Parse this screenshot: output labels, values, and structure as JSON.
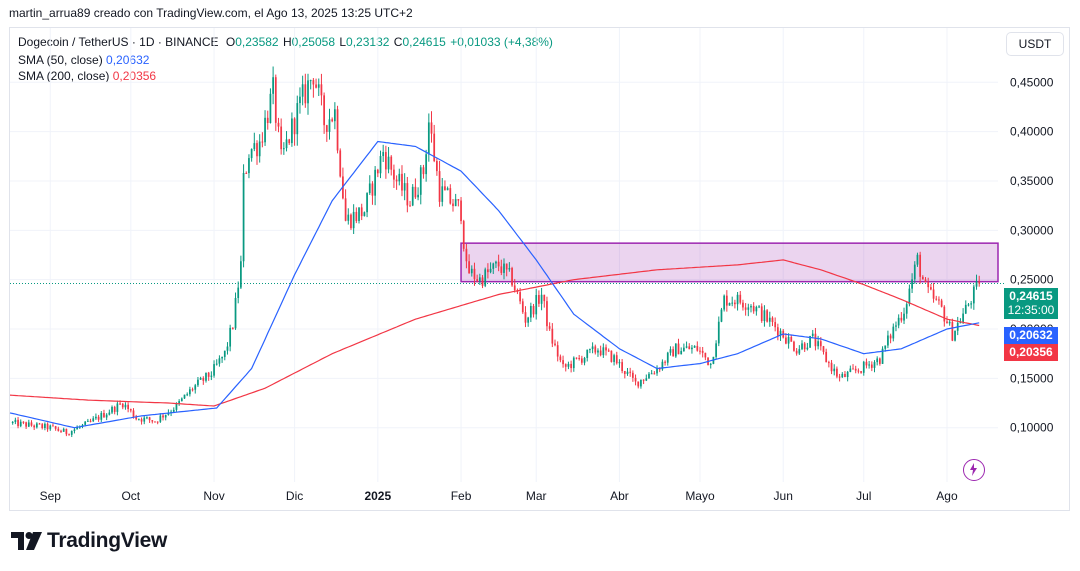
{
  "header": {
    "credit": "martin_arrua89 creado con TradingView.com, el Ago 13, 2025 13:25 UTC+2"
  },
  "legend": {
    "symbol": "Dogecoin / TetherUS · 1D · BINANCE",
    "open_label": "O",
    "open": "0,23582",
    "high_label": "H",
    "high": "0,25058",
    "low_label": "L",
    "low": "0,23132",
    "close_label": "C",
    "close": "0,24615",
    "change": "+0,01033 (+4,38%)",
    "sma50_label": "SMA (50, close)",
    "sma50_value": "0,20632",
    "sma200_label": "SMA (200, close)",
    "sma200_value": "0,20356"
  },
  "currency": "USDT",
  "price_tags": {
    "last_price": "0,24615",
    "countdown": "12:35:00",
    "sma50": "0,20632",
    "sma200": "0,20356"
  },
  "brand": {
    "name": "TradingView"
  },
  "colors": {
    "up": "#089981",
    "down": "#f23645",
    "sma50": "#2962ff",
    "sma200": "#f23645",
    "zone": "#9c27b0"
  },
  "chart_data": {
    "type": "candlestick",
    "y_tick_labels": [
      "0,10000",
      "0,15000",
      "0,20000",
      "0,25000",
      "0,30000",
      "0,35000",
      "0,40000",
      "0,45000"
    ],
    "y_ticks": [
      0.1,
      0.15,
      0.2,
      0.25,
      0.3,
      0.35,
      0.4,
      0.45
    ],
    "ylim": [
      0.045,
      0.505
    ],
    "x_tick_labels": [
      "Sep",
      "Oct",
      "Nov",
      "Dic",
      "2025",
      "Feb",
      "Mar",
      "Abr",
      "Mayo",
      "Jun",
      "Jul",
      "Ago"
    ],
    "x_range": [
      "2024-08-17",
      "2025-08-20"
    ],
    "x_tick_dates": [
      "2024-09-01",
      "2024-10-01",
      "2024-11-01",
      "2024-12-01",
      "2025-01-01",
      "2025-02-01",
      "2025-03-01",
      "2025-04-01",
      "2025-05-01",
      "2025-06-01",
      "2025-07-01",
      "2025-08-01"
    ],
    "price_keypoints": [
      [
        "2024-08-17",
        0.105
      ],
      [
        "2024-09-01",
        0.1
      ],
      [
        "2024-09-07",
        0.095
      ],
      [
        "2024-09-15",
        0.104
      ],
      [
        "2024-09-28",
        0.125
      ],
      [
        "2024-10-03",
        0.11
      ],
      [
        "2024-10-10",
        0.107
      ],
      [
        "2024-10-18",
        0.122
      ],
      [
        "2024-10-24",
        0.14
      ],
      [
        "2024-10-31",
        0.155
      ],
      [
        "2024-11-05",
        0.175
      ],
      [
        "2024-11-08",
        0.205
      ],
      [
        "2024-11-11",
        0.265
      ],
      [
        "2024-11-12",
        0.35
      ],
      [
        "2024-11-14",
        0.38
      ],
      [
        "2024-11-18",
        0.39
      ],
      [
        "2024-11-23",
        0.44
      ],
      [
        "2024-11-26",
        0.37
      ],
      [
        "2024-12-02",
        0.42
      ],
      [
        "2024-12-08",
        0.46
      ],
      [
        "2024-12-12",
        0.41
      ],
      [
        "2024-12-16",
        0.42
      ],
      [
        "2024-12-20",
        0.31
      ],
      [
        "2024-12-27",
        0.32
      ],
      [
        "2025-01-03",
        0.38
      ],
      [
        "2025-01-08",
        0.35
      ],
      [
        "2025-01-13",
        0.33
      ],
      [
        "2025-01-18",
        0.36
      ],
      [
        "2025-01-20",
        0.41
      ],
      [
        "2025-01-24",
        0.34
      ],
      [
        "2025-02-01",
        0.32
      ],
      [
        "2025-02-03",
        0.26
      ],
      [
        "2025-02-08",
        0.25
      ],
      [
        "2025-02-15",
        0.265
      ],
      [
        "2025-02-20",
        0.25
      ],
      [
        "2025-02-25",
        0.21
      ],
      [
        "2025-03-03",
        0.235
      ],
      [
        "2025-03-06",
        0.195
      ],
      [
        "2025-03-11",
        0.16
      ],
      [
        "2025-03-24",
        0.18
      ],
      [
        "2025-03-30",
        0.17
      ],
      [
        "2025-04-07",
        0.145
      ],
      [
        "2025-04-15",
        0.16
      ],
      [
        "2025-04-22",
        0.18
      ],
      [
        "2025-04-30",
        0.18
      ],
      [
        "2025-05-05",
        0.165
      ],
      [
        "2025-05-10",
        0.23
      ],
      [
        "2025-05-14",
        0.23
      ],
      [
        "2025-05-20",
        0.225
      ],
      [
        "2025-05-30",
        0.2
      ],
      [
        "2025-06-06",
        0.18
      ],
      [
        "2025-06-12",
        0.19
      ],
      [
        "2025-06-18",
        0.165
      ],
      [
        "2025-06-22",
        0.15
      ],
      [
        "2025-06-30",
        0.16
      ],
      [
        "2025-07-07",
        0.17
      ],
      [
        "2025-07-12",
        0.2
      ],
      [
        "2025-07-16",
        0.22
      ],
      [
        "2025-07-21",
        0.27
      ],
      [
        "2025-07-24",
        0.24
      ],
      [
        "2025-07-30",
        0.22
      ],
      [
        "2025-08-03",
        0.195
      ],
      [
        "2025-08-08",
        0.22
      ],
      [
        "2025-08-13",
        0.24615
      ]
    ],
    "sma50_keypoints": [
      [
        "2024-08-17",
        0.115
      ],
      [
        "2024-09-10",
        0.1
      ],
      [
        "2024-10-05",
        0.112
      ],
      [
        "2024-11-02",
        0.12
      ],
      [
        "2024-11-15",
        0.16
      ],
      [
        "2024-12-01",
        0.255
      ],
      [
        "2024-12-15",
        0.33
      ],
      [
        "2025-01-01",
        0.39
      ],
      [
        "2025-01-15",
        0.385
      ],
      [
        "2025-02-01",
        0.36
      ],
      [
        "2025-02-15",
        0.32
      ],
      [
        "2025-03-01",
        0.27
      ],
      [
        "2025-03-15",
        0.215
      ],
      [
        "2025-04-01",
        0.18
      ],
      [
        "2025-04-15",
        0.16
      ],
      [
        "2025-05-01",
        0.165
      ],
      [
        "2025-05-15",
        0.175
      ],
      [
        "2025-06-01",
        0.195
      ],
      [
        "2025-06-15",
        0.19
      ],
      [
        "2025-07-01",
        0.175
      ],
      [
        "2025-07-15",
        0.18
      ],
      [
        "2025-08-01",
        0.2
      ],
      [
        "2025-08-13",
        0.20632
      ]
    ],
    "sma200_keypoints": [
      [
        "2024-08-17",
        0.133
      ],
      [
        "2024-09-15",
        0.128
      ],
      [
        "2024-10-15",
        0.125
      ],
      [
        "2024-11-01",
        0.122
      ],
      [
        "2024-11-20",
        0.14
      ],
      [
        "2024-12-15",
        0.175
      ],
      [
        "2025-01-15",
        0.21
      ],
      [
        "2025-02-15",
        0.235
      ],
      [
        "2025-03-15",
        0.25
      ],
      [
        "2025-04-15",
        0.26
      ],
      [
        "2025-05-15",
        0.265
      ],
      [
        "2025-06-01",
        0.27
      ],
      [
        "2025-06-15",
        0.26
      ],
      [
        "2025-07-01",
        0.245
      ],
      [
        "2025-07-15",
        0.23
      ],
      [
        "2025-08-01",
        0.21
      ],
      [
        "2025-08-13",
        0.20356
      ]
    ],
    "zone": {
      "from": "2025-02-01",
      "to": "2025-08-20",
      "top": 0.287,
      "bottom": 0.248
    },
    "dotted_price_line": 0.24615
  }
}
